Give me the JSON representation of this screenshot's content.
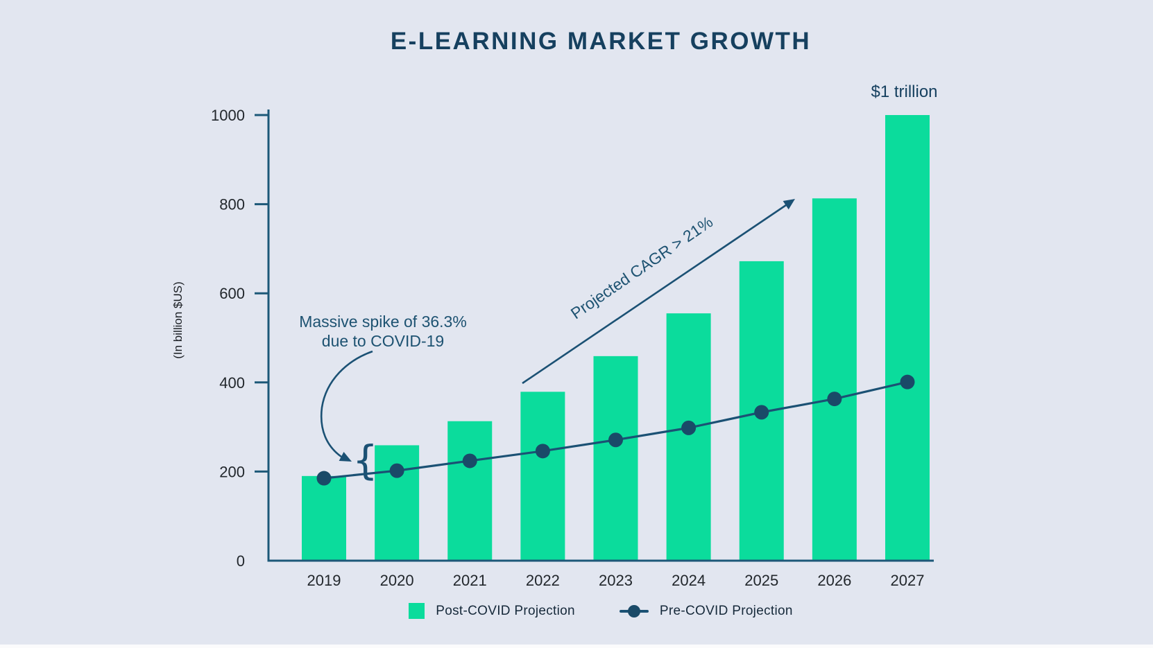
{
  "title": "E-LEARNING MARKET GROWTH",
  "chart_data": {
    "type": "bar",
    "subtype": "bar-and-line-combo",
    "categories": [
      "2019",
      "2020",
      "2021",
      "2022",
      "2023",
      "2024",
      "2025",
      "2026",
      "2027"
    ],
    "series": [
      {
        "name": "Post-COVID Projection",
        "type": "bar",
        "color": "#0bdc9c",
        "values": [
          190,
          259,
          313,
          379,
          459,
          555,
          672,
          813,
          1000
        ]
      },
      {
        "name": "Pre-COVID Projection",
        "type": "line",
        "color": "#1b5174",
        "dot_color": "#1a4a68",
        "values": [
          185,
          202,
          224,
          246,
          271,
          298,
          333,
          363,
          401
        ]
      }
    ],
    "title": "E-LEARNING MARKET GROWTH",
    "xlabel": "",
    "ylabel": "(In billion $US)",
    "yticks": [
      0,
      200,
      400,
      600,
      800,
      1000
    ],
    "ylim": [
      0,
      1000
    ],
    "grid": false,
    "legend_position": "bottom-center",
    "annotations": [
      {
        "id": "spike",
        "text_line1": "Massive spike of 36.3%",
        "text_line2": "due to COVID-19",
        "points_to": "gap between pre-COVID line and 2020 bar top, marked with curly brace"
      },
      {
        "id": "cagr",
        "text": "Projected CAGR > 21%",
        "style": "diagonal arrow from 2022 bar top to above 2026 bar"
      },
      {
        "id": "trillion",
        "text": "$1 trillion",
        "position": "above 2027 bar"
      }
    ]
  },
  "annotations": {
    "spike_line1": "Massive spike of 36.3%",
    "spike_line2": "due to COVID-19",
    "cagr": "Projected CAGR > 21%",
    "trillion": "$1 trillion"
  },
  "legend": {
    "items": [
      {
        "label": "Post-COVID Projection",
        "marker": "green-square",
        "color": "#0bdc9c"
      },
      {
        "label": "Pre-COVID Projection",
        "marker": "line-with-dot",
        "color": "#1b5174"
      }
    ]
  },
  "colors": {
    "background": "#e2e6f0",
    "bar_green": "#0bdc9c",
    "navy_text": "#16405f",
    "line_navy": "#1b5174",
    "axis_navy": "#1c5878",
    "tick_text": "#22272c"
  }
}
